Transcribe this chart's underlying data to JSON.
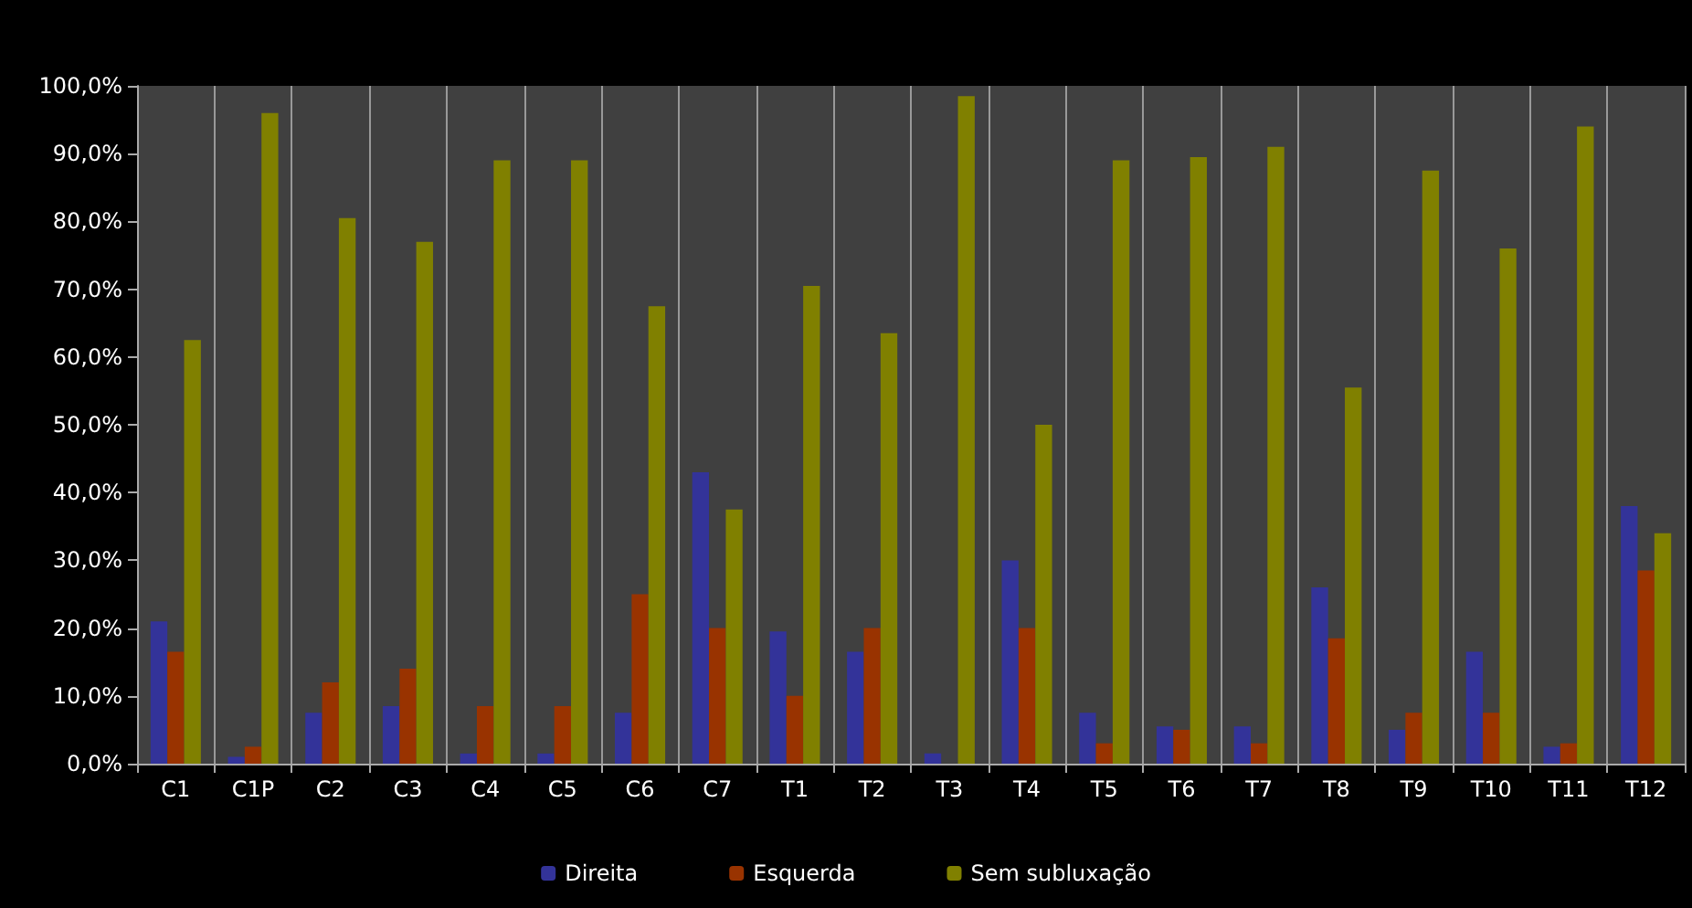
{
  "chart_data": {
    "type": "bar",
    "categories": [
      "C1",
      "C1P",
      "C2",
      "C3",
      "C4",
      "C5",
      "C6",
      "C7",
      "T1",
      "T2",
      "T3",
      "T4",
      "T5",
      "T6",
      "T7",
      "T8",
      "T9",
      "T10",
      "T11",
      "T12"
    ],
    "series": [
      {
        "name": "Direita",
        "color": "#333399",
        "values": [
          21,
          1,
          7.5,
          8.5,
          1.5,
          1.5,
          7.5,
          43,
          19.5,
          16.5,
          1.5,
          30,
          7.5,
          5.5,
          5.5,
          26,
          5,
          16.5,
          2.5,
          38
        ]
      },
      {
        "name": "Esquerda",
        "color": "#993300",
        "values": [
          16.5,
          2.5,
          12,
          14,
          8.5,
          8.5,
          25,
          20,
          10,
          20,
          0,
          20,
          3,
          5,
          3,
          18.5,
          7.5,
          7.5,
          3,
          28.5
        ]
      },
      {
        "name": "Sem subluxação",
        "color": "#808000",
        "values": [
          62.5,
          96,
          80.5,
          77,
          89,
          89,
          67.5,
          37.5,
          70.5,
          63.5,
          98.5,
          50,
          89,
          89.5,
          91,
          55.5,
          87.5,
          76,
          94,
          34
        ]
      }
    ],
    "ylim": [
      0,
      100
    ],
    "yticks": [
      {
        "value": 0,
        "label": "0,0%"
      },
      {
        "value": 10,
        "label": "10,0%"
      },
      {
        "value": 20,
        "label": "20,0%"
      },
      {
        "value": 30,
        "label": "30,0%"
      },
      {
        "value": 40,
        "label": "40,0%"
      },
      {
        "value": 50,
        "label": "50,0%"
      },
      {
        "value": 60,
        "label": "60,0%"
      },
      {
        "value": 70,
        "label": "70,0%"
      },
      {
        "value": 80,
        "label": "80,0%"
      },
      {
        "value": 90,
        "label": "90,0%"
      },
      {
        "value": 100,
        "label": "100,0%"
      }
    ],
    "grid": "x",
    "legend": "bottom"
  }
}
